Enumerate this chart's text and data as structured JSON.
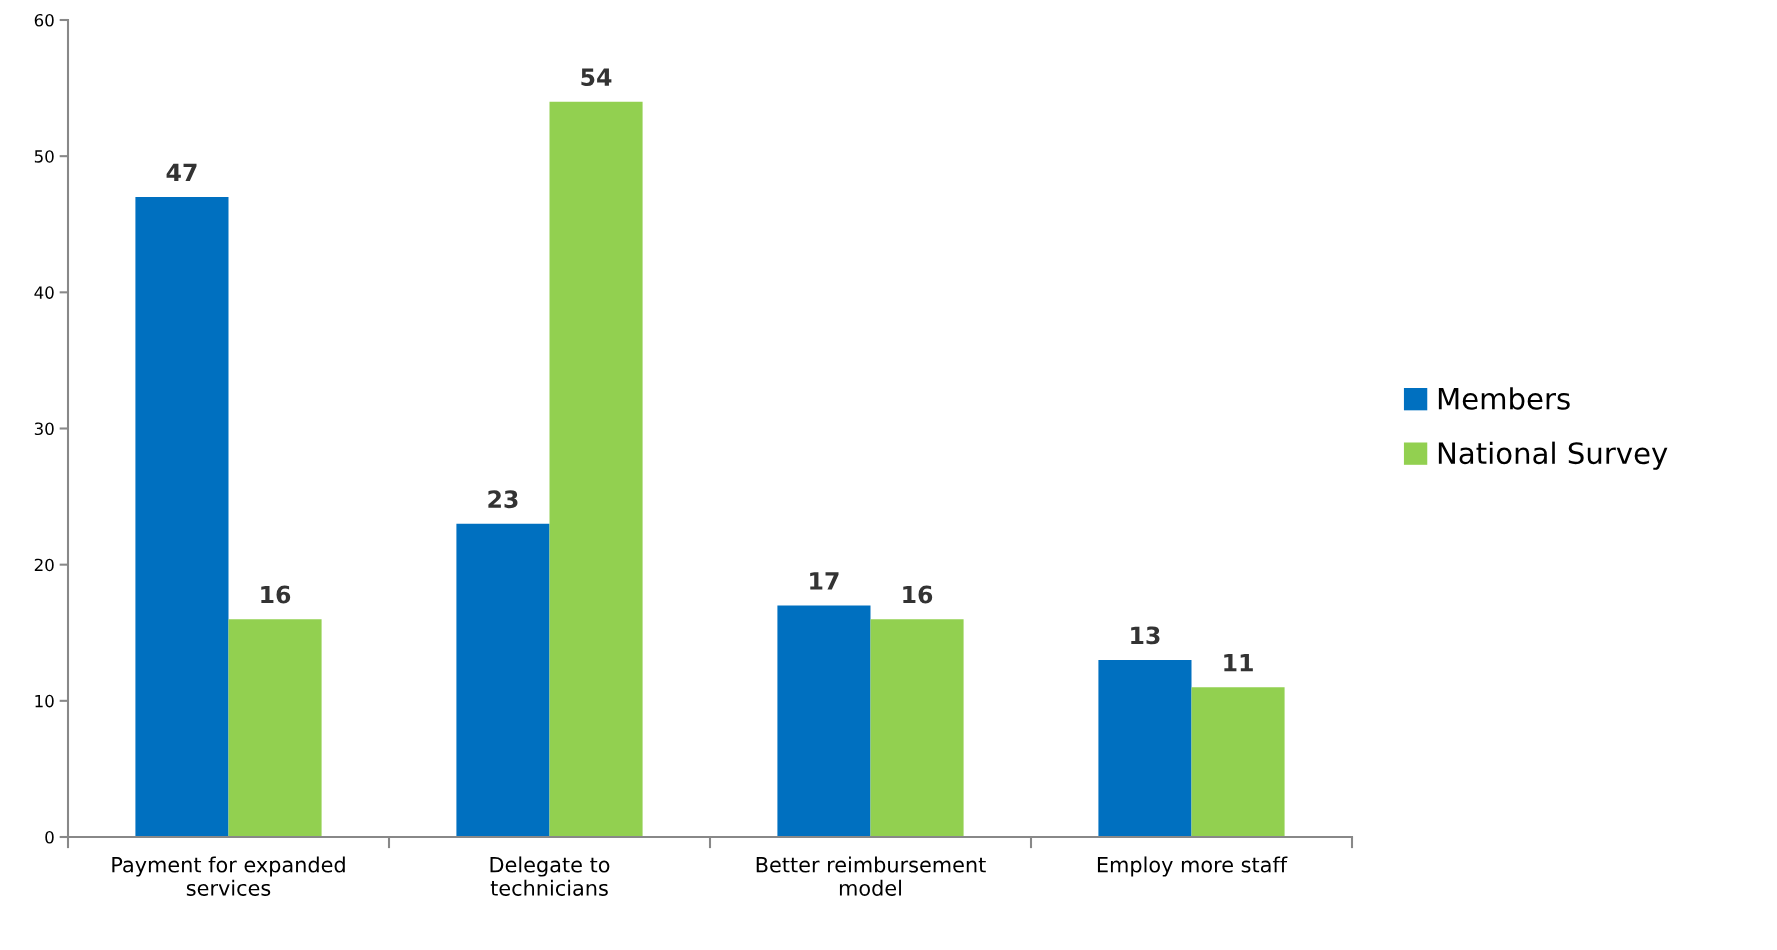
{
  "chart_data": {
    "type": "bar",
    "categories": [
      "Payment for expanded services",
      "Delegate to technicians",
      "Better reimbursement model",
      "Employ more staff"
    ],
    "series": [
      {
        "name": "Members",
        "color": "#0070c0",
        "values": [
          47,
          23,
          17,
          13
        ]
      },
      {
        "name": "National Survey",
        "color": "#92d050",
        "values": [
          16,
          54,
          16,
          11
        ]
      }
    ],
    "ylim": [
      0,
      60
    ],
    "yticks": [
      0,
      10,
      20,
      30,
      40,
      50,
      60
    ],
    "data_labels": true,
    "grid": false,
    "legend": "right"
  }
}
